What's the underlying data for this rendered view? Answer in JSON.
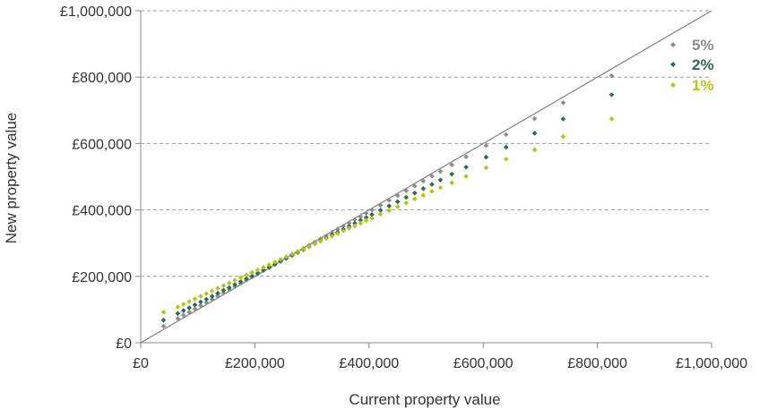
{
  "chart_data": {
    "type": "scatter",
    "title": "",
    "xlabel": "Current property value",
    "ylabel": "New property value",
    "xlim": [
      0,
      1000000
    ],
    "ylim": [
      0,
      1000000
    ],
    "x_ticks": [
      0,
      200000,
      400000,
      600000,
      800000,
      1000000
    ],
    "x_tick_labels": [
      "£0",
      "£200,000",
      "£400,000",
      "£600,000",
      "£800,000",
      "£1,000,000"
    ],
    "y_ticks": [
      0,
      200000,
      400000,
      600000,
      800000,
      1000000
    ],
    "y_tick_labels": [
      "£0",
      "£200,000",
      "£400,000",
      "£600,000",
      "£800,000",
      "£1,000,000"
    ],
    "grid": "horizontal dashed",
    "reference_line": {
      "x": [
        0,
        1000000
      ],
      "y": [
        0,
        1000000
      ],
      "color": "#808080"
    },
    "legend": {
      "position": "top-right",
      "style": "diamond markers with bold colored labels"
    },
    "colors": {
      "5%": "#8c8c8c",
      "2%": "#2e6a4f",
      "1%": "#b5c218"
    },
    "series": [
      {
        "name": "5%",
        "color": "#8c8c8c",
        "x": [
          40000,
          65000,
          75000,
          85000,
          95000,
          105000,
          115000,
          125000,
          135000,
          145000,
          155000,
          165000,
          175000,
          185000,
          195000,
          205000,
          215000,
          225000,
          235000,
          245000,
          255000,
          265000,
          275000,
          285000,
          295000,
          305000,
          315000,
          325000,
          335000,
          345000,
          355000,
          365000,
          375000,
          385000,
          395000,
          405000,
          420000,
          435000,
          450000,
          465000,
          480000,
          495000,
          510000,
          525000,
          545000,
          570000,
          605000,
          640000,
          690000,
          740000,
          825000
        ],
        "y": [
          50000,
          73000,
          83000,
          92000,
          102000,
          112000,
          121000,
          131000,
          140000,
          150000,
          160000,
          169000,
          179000,
          188000,
          198000,
          207000,
          217000,
          226000,
          236000,
          246000,
          255000,
          265000,
          274000,
          284000,
          294000,
          303000,
          313000,
          322000,
          332000,
          342000,
          351000,
          361000,
          371000,
          380000,
          390000,
          400000,
          414000,
          429000,
          443000,
          458000,
          472000,
          487000,
          502000,
          516000,
          536000,
          560000,
          594000,
          627000,
          675000,
          723000,
          804000
        ]
      },
      {
        "name": "2%",
        "color": "#2e6a4f",
        "x": [
          40000,
          65000,
          75000,
          85000,
          95000,
          105000,
          115000,
          125000,
          135000,
          145000,
          155000,
          165000,
          175000,
          185000,
          195000,
          205000,
          215000,
          225000,
          235000,
          245000,
          255000,
          265000,
          275000,
          285000,
          295000,
          305000,
          315000,
          325000,
          335000,
          345000,
          355000,
          365000,
          375000,
          385000,
          395000,
          405000,
          420000,
          435000,
          450000,
          465000,
          480000,
          495000,
          510000,
          525000,
          545000,
          570000,
          605000,
          640000,
          690000,
          740000,
          825000
        ],
        "y": [
          68000,
          88000,
          97000,
          105000,
          114000,
          123000,
          131000,
          140000,
          149000,
          158000,
          166000,
          175000,
          184000,
          193000,
          201000,
          210000,
          219000,
          228000,
          236000,
          245000,
          254000,
          263000,
          272000,
          280000,
          289000,
          298000,
          307000,
          316000,
          325000,
          333000,
          342000,
          351000,
          360000,
          369000,
          377000,
          386000,
          399000,
          412000,
          425000,
          438000,
          451000,
          464000,
          477000,
          490000,
          508000,
          529000,
          559000,
          589000,
          631000,
          674000,
          747000
        ]
      },
      {
        "name": "1%",
        "color": "#b5c218",
        "x": [
          40000,
          65000,
          75000,
          85000,
          95000,
          105000,
          115000,
          125000,
          135000,
          145000,
          155000,
          165000,
          175000,
          185000,
          195000,
          205000,
          215000,
          225000,
          235000,
          245000,
          255000,
          265000,
          275000,
          285000,
          295000,
          305000,
          315000,
          325000,
          335000,
          345000,
          355000,
          365000,
          375000,
          385000,
          395000,
          405000,
          420000,
          435000,
          450000,
          465000,
          480000,
          495000,
          510000,
          525000,
          545000,
          570000,
          605000,
          640000,
          690000,
          740000,
          825000
        ],
        "y": [
          92000,
          108000,
          116000,
          124000,
          132000,
          140000,
          148000,
          156000,
          164000,
          172000,
          180000,
          188000,
          196000,
          204000,
          212000,
          219000,
          227000,
          235000,
          243000,
          251000,
          259000,
          267000,
          275000,
          282000,
          290000,
          298000,
          306000,
          314000,
          321000,
          329000,
          337000,
          345000,
          352000,
          360000,
          368000,
          375000,
          387000,
          398000,
          410000,
          421000,
          433000,
          444000,
          456000,
          467000,
          482000,
          501000,
          527000,
          553000,
          581000,
          621000,
          674000
        ]
      }
    ]
  }
}
